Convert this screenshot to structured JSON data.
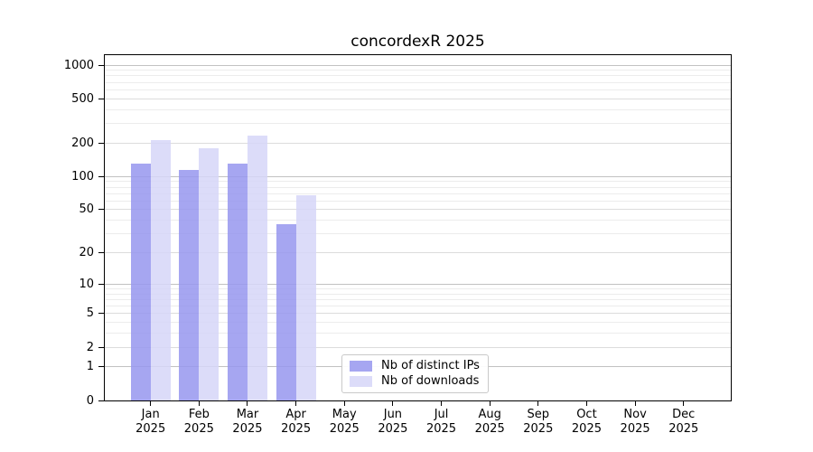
{
  "title": "concordexR 2025",
  "chart_data": {
    "type": "bar",
    "title": "concordexR 2025",
    "yscale": "log1p",
    "grid": "horizontal",
    "ylim": [
      0,
      1300
    ],
    "yticks": [
      0,
      1,
      2,
      5,
      10,
      20,
      50,
      100,
      200,
      500,
      1000
    ],
    "ytick_labels": [
      "0",
      "1",
      "2",
      "5",
      "10",
      "20",
      "50",
      "100",
      "200",
      "500",
      "1000"
    ],
    "categories": [
      "Jan",
      "Feb",
      "Mar",
      "Apr",
      "May",
      "Jun",
      "Jul",
      "Aug",
      "Sep",
      "Oct",
      "Nov",
      "Dec"
    ],
    "category_year": "2025",
    "series": [
      {
        "name": "Nb of distinct IPs",
        "key": "distinct-ips",
        "color": "rgba(150,150,238,0.85)",
        "values": [
          130,
          114,
          131,
          37,
          0,
          0,
          0,
          0,
          0,
          0,
          0,
          0
        ]
      },
      {
        "name": "Nb of downloads",
        "key": "downloads",
        "color": "rgba(214,214,248,0.85)",
        "values": [
          211,
          180,
          235,
          67,
          0,
          0,
          0,
          0,
          0,
          0,
          0,
          0
        ]
      }
    ],
    "legend_position": "inside-bottom-center"
  }
}
